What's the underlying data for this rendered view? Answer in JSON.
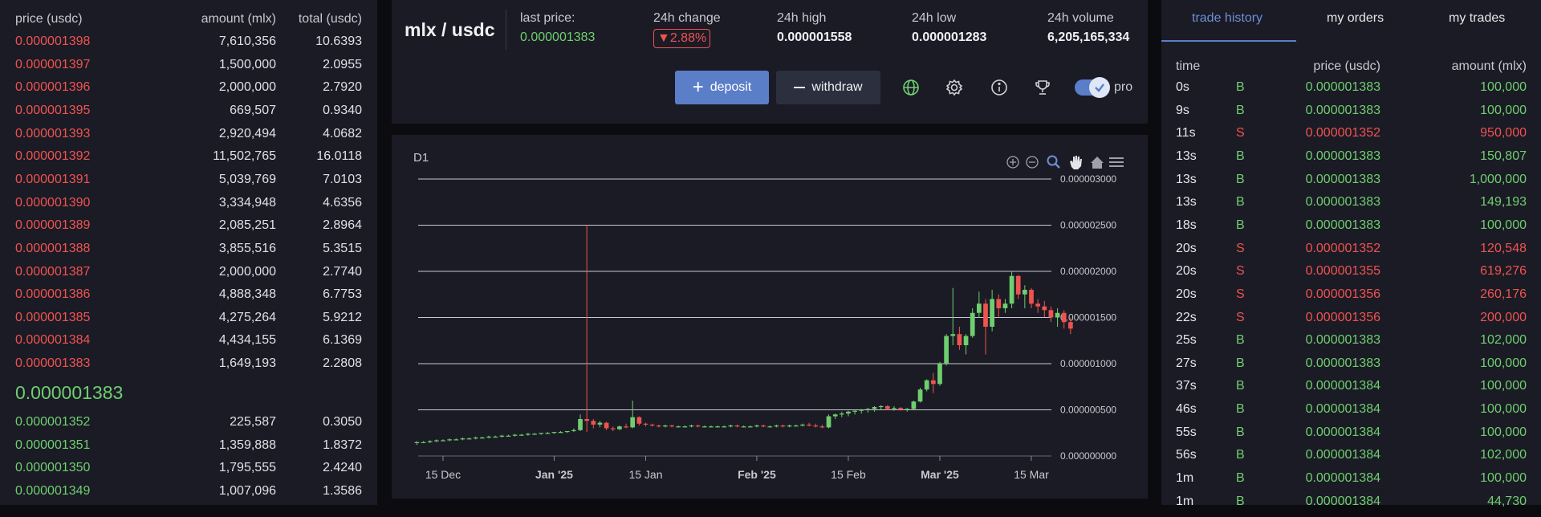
{
  "orderbook": {
    "headers": {
      "price": "price (usdc)",
      "amount": "amount (mlx)",
      "total": "total (usdc)"
    },
    "asks": [
      {
        "price": "0.000001398",
        "amount": "7,610,356",
        "total": "10.6393"
      },
      {
        "price": "0.000001397",
        "amount": "1,500,000",
        "total": "2.0955"
      },
      {
        "price": "0.000001396",
        "amount": "2,000,000",
        "total": "2.7920"
      },
      {
        "price": "0.000001395",
        "amount": "669,507",
        "total": "0.9340"
      },
      {
        "price": "0.000001393",
        "amount": "2,920,494",
        "total": "4.0682"
      },
      {
        "price": "0.000001392",
        "amount": "11,502,765",
        "total": "16.0118"
      },
      {
        "price": "0.000001391",
        "amount": "5,039,769",
        "total": "7.0103"
      },
      {
        "price": "0.000001390",
        "amount": "3,334,948",
        "total": "4.6356"
      },
      {
        "price": "0.000001389",
        "amount": "2,085,251",
        "total": "2.8964"
      },
      {
        "price": "0.000001388",
        "amount": "3,855,516",
        "total": "5.3515"
      },
      {
        "price": "0.000001387",
        "amount": "2,000,000",
        "total": "2.7740"
      },
      {
        "price": "0.000001386",
        "amount": "4,888,348",
        "total": "6.7753"
      },
      {
        "price": "0.000001385",
        "amount": "4,275,264",
        "total": "5.9212"
      },
      {
        "price": "0.000001384",
        "amount": "4,434,155",
        "total": "6.1369"
      },
      {
        "price": "0.000001383",
        "amount": "1,649,193",
        "total": "2.2808"
      }
    ],
    "last_price": "0.000001383",
    "bids": [
      {
        "price": "0.000001352",
        "amount": "225,587",
        "total": "0.3050"
      },
      {
        "price": "0.000001351",
        "amount": "1,359,888",
        "total": "1.8372"
      },
      {
        "price": "0.000001350",
        "amount": "1,795,555",
        "total": "2.4240"
      },
      {
        "price": "0.000001349",
        "amount": "1,007,096",
        "total": "1.3586"
      }
    ]
  },
  "header": {
    "pair": "mlx / usdc",
    "last_price_label": "last price:",
    "last_price": "0.000001383",
    "change_label": "24h change",
    "change": "▼2.88%",
    "high_label": "24h high",
    "high": "0.000001558",
    "low_label": "24h low",
    "low": "0.000001283",
    "volume_label": "24h volume",
    "volume": "6,205,165,334",
    "deposit_label": "deposit",
    "withdraw_label": "withdraw",
    "pro_label": "pro"
  },
  "icons": [
    "globe-icon",
    "settings-icon",
    "info-icon",
    "trophy-icon",
    "zoom-in-icon",
    "zoom-out-icon",
    "zoom-select-icon",
    "pan-icon",
    "home-icon",
    "menu-icon"
  ],
  "chart_data": {
    "type": "candlestick",
    "interval": "D1",
    "x_tick_labels": [
      "15 Dec",
      "Jan '25",
      "15 Jan",
      "Feb '25",
      "15 Feb",
      "Mar '25",
      "15 Mar"
    ],
    "y_tick_labels": [
      "0.000000000",
      "0.000000500",
      "0.000001000",
      "0.000001500",
      "0.000002000",
      "0.000002500",
      "0.000003000"
    ],
    "ylim": [
      0,
      3e-06
    ],
    "start_date": "2024-12-11",
    "candles": [
      [
        1.4e-07,
        1.6e-07,
        1.2e-07,
        1.5e-07
      ],
      [
        1.5e-07,
        1.6e-07,
        1.4e-07,
        1.5e-07
      ],
      [
        1.5e-07,
        1.7e-07,
        1.4e-07,
        1.6e-07
      ],
      [
        1.6e-07,
        1.8e-07,
        1.5e-07,
        1.7e-07
      ],
      [
        1.7e-07,
        1.8e-07,
        1.6e-07,
        1.7e-07
      ],
      [
        1.7e-07,
        1.9e-07,
        1.6e-07,
        1.8e-07
      ],
      [
        1.8e-07,
        1.9e-07,
        1.7e-07,
        1.8e-07
      ],
      [
        1.8e-07,
        2e-07,
        1.7e-07,
        1.9e-07
      ],
      [
        1.9e-07,
        2e-07,
        1.8e-07,
        1.9e-07
      ],
      [
        1.9e-07,
        2.1e-07,
        1.8e-07,
        2e-07
      ],
      [
        2e-07,
        2.1e-07,
        1.9e-07,
        2e-07
      ],
      [
        2e-07,
        2.2e-07,
        1.9e-07,
        2.1e-07
      ],
      [
        2.1e-07,
        2.2e-07,
        2e-07,
        2.1e-07
      ],
      [
        2.1e-07,
        2.3e-07,
        2e-07,
        2.2e-07
      ],
      [
        2.2e-07,
        2.3e-07,
        2.1e-07,
        2.2e-07
      ],
      [
        2.2e-07,
        2.4e-07,
        2.1e-07,
        2.3e-07
      ],
      [
        2.3e-07,
        2.4e-07,
        2.2e-07,
        2.3e-07
      ],
      [
        2.3e-07,
        2.5e-07,
        2.2e-07,
        2.4e-07
      ],
      [
        2.4e-07,
        2.5e-07,
        2.3e-07,
        2.4e-07
      ],
      [
        2.4e-07,
        2.5e-07,
        2.3e-07,
        2.5e-07
      ],
      [
        2.5e-07,
        2.6e-07,
        2.4e-07,
        2.5e-07
      ],
      [
        2.5e-07,
        2.6e-07,
        2.4e-07,
        2.6e-07
      ],
      [
        2.6e-07,
        2.7e-07,
        2.5e-07,
        2.6e-07
      ],
      [
        2.6e-07,
        2.7e-07,
        2.5e-07,
        2.7e-07
      ],
      [
        2.7e-07,
        3e-07,
        2.6e-07,
        2.8e-07
      ],
      [
        2.8e-07,
        4.5e-07,
        2.7e-07,
        4e-07
      ],
      [
        4e-07,
        2.5e-06,
        2.6e-07,
        3.8e-07
      ],
      [
        3.8e-07,
        4e-07,
        3e-07,
        3.4e-07
      ],
      [
        3.4e-07,
        3.8e-07,
        3.1e-07,
        3.6e-07
      ],
      [
        3.6e-07,
        3.7e-07,
        2.8e-07,
        3e-07
      ],
      [
        3e-07,
        3.2e-07,
        2.7e-07,
        2.9e-07
      ],
      [
        2.9e-07,
        3.3e-07,
        2.8e-07,
        3.2e-07
      ],
      [
        3.2e-07,
        3.5e-07,
        3e-07,
        3.1e-07
      ],
      [
        3.1e-07,
        6e-07,
        3e-07,
        4.2e-07
      ],
      [
        4.2e-07,
        4.3e-07,
        3.3e-07,
        3.5e-07
      ],
      [
        3.5e-07,
        3.6e-07,
        3.2e-07,
        3.4e-07
      ],
      [
        3.4e-07,
        3.5e-07,
        3.2e-07,
        3.3e-07
      ],
      [
        3.3e-07,
        3.4e-07,
        3.1e-07,
        3.2e-07
      ],
      [
        3.2e-07,
        3.4e-07,
        3.1e-07,
        3.3e-07
      ],
      [
        3.3e-07,
        3.4e-07,
        3.1e-07,
        3.2e-07
      ],
      [
        3.2e-07,
        3.3e-07,
        3.1e-07,
        3.2e-07
      ],
      [
        3.2e-07,
        3.3e-07,
        3.1e-07,
        3.2e-07
      ],
      [
        3.2e-07,
        3.4e-07,
        3.1e-07,
        3.3e-07
      ],
      [
        3.3e-07,
        3.4e-07,
        3.1e-07,
        3.2e-07
      ],
      [
        3.2e-07,
        3.3e-07,
        3.1e-07,
        3.2e-07
      ],
      [
        3.2e-07,
        3.3e-07,
        3.1e-07,
        3.2e-07
      ],
      [
        3.2e-07,
        3.3e-07,
        3.1e-07,
        3.2e-07
      ],
      [
        3.2e-07,
        3.3e-07,
        3.1e-07,
        3.2e-07
      ],
      [
        3.2e-07,
        3.4e-07,
        3.1e-07,
        3.3e-07
      ],
      [
        3.3e-07,
        3.4e-07,
        3.1e-07,
        3.2e-07
      ],
      [
        3.2e-07,
        3.3e-07,
        3.1e-07,
        3.2e-07
      ],
      [
        3.2e-07,
        3.3e-07,
        3.1e-07,
        3.2e-07
      ],
      [
        3.2e-07,
        3.4e-07,
        3.1e-07,
        3.3e-07
      ],
      [
        3.3e-07,
        3.4e-07,
        3.1e-07,
        3.2e-07
      ],
      [
        3.2e-07,
        3.3e-07,
        3.1e-07,
        3.2e-07
      ],
      [
        3.2e-07,
        3.4e-07,
        3.1e-07,
        3.3e-07
      ],
      [
        3.3e-07,
        3.4e-07,
        3.1e-07,
        3.2e-07
      ],
      [
        3.2e-07,
        3.4e-07,
        3.1e-07,
        3.3e-07
      ],
      [
        3.3e-07,
        3.4e-07,
        3.2e-07,
        3.3e-07
      ],
      [
        3.3e-07,
        3.5e-07,
        3.2e-07,
        3.4e-07
      ],
      [
        3.4e-07,
        3.6e-07,
        3.2e-07,
        3.3e-07
      ],
      [
        3.3e-07,
        3.5e-07,
        3.1e-07,
        3.2e-07
      ],
      [
        3.2e-07,
        3.4e-07,
        3e-07,
        3.1e-07
      ],
      [
        3.1e-07,
        4.5e-07,
        3e-07,
        4.3e-07
      ],
      [
        4.3e-07,
        4.6e-07,
        4e-07,
        4.5e-07
      ],
      [
        4.5e-07,
        4.8e-07,
        4.2e-07,
        4.6e-07
      ],
      [
        4.6e-07,
        4.9e-07,
        4.3e-07,
        4.8e-07
      ],
      [
        4.8e-07,
        5e-07,
        4.5e-07,
        4.9e-07
      ],
      [
        4.9e-07,
        5.1e-07,
        4.6e-07,
        5e-07
      ],
      [
        5e-07,
        5.2e-07,
        4.7e-07,
        5.1e-07
      ],
      [
        5.1e-07,
        5.4e-07,
        4.8e-07,
        5.3e-07
      ],
      [
        5.3e-07,
        5.5e-07,
        5e-07,
        5.4e-07
      ],
      [
        5.4e-07,
        5.5e-07,
        5e-07,
        5.1e-07
      ],
      [
        5.1e-07,
        5.4e-07,
        4.9e-07,
        5.2e-07
      ],
      [
        5.2e-07,
        5.3e-07,
        4.9e-07,
        5e-07
      ],
      [
        5e-07,
        5.2e-07,
        4.8e-07,
        5.1e-07
      ],
      [
        5.1e-07,
        6e-07,
        5e-07,
        5.9e-07
      ],
      [
        5.9e-07,
        7.4e-07,
        5.8e-07,
        7.2e-07
      ],
      [
        7.2e-07,
        8.3e-07,
        7e-07,
        8.2e-07
      ],
      [
        8.2e-07,
        9e-07,
        6.8e-07,
        7.8e-07
      ],
      [
        7.8e-07,
        1.02e-06,
        7.6e-07,
        1e-06
      ],
      [
        1e-06,
        1.32e-06,
        9.8e-07,
        1.3e-06
      ],
      [
        1.3e-06,
        1.82e-06,
        1.2e-06,
        1.32e-06
      ],
      [
        1.32e-06,
        1.4e-06,
        1.15e-06,
        1.2e-06
      ],
      [
        1.2e-06,
        1.32e-06,
        1.1e-06,
        1.3e-06
      ],
      [
        1.3e-06,
        1.6e-06,
        1.28e-06,
        1.55e-06
      ],
      [
        1.55e-06,
        1.78e-06,
        1.5e-06,
        1.65e-06
      ],
      [
        1.65e-06,
        1.7e-06,
        1.1e-06,
        1.4e-06
      ],
      [
        1.4e-06,
        1.8e-06,
        1.35e-06,
        1.7e-06
      ],
      [
        1.7e-06,
        1.75e-06,
        1.5e-06,
        1.6e-06
      ],
      [
        1.6e-06,
        1.7e-06,
        1.55e-06,
        1.65e-06
      ],
      [
        1.65e-06,
        2e-06,
        1.6e-06,
        1.95e-06
      ],
      [
        1.95e-06,
        1.96e-06,
        1.7e-06,
        1.75e-06
      ],
      [
        1.75e-06,
        1.85e-06,
        1.6e-06,
        1.8e-06
      ],
      [
        1.8e-06,
        1.82e-06,
        1.6e-06,
        1.65e-06
      ],
      [
        1.65e-06,
        1.7e-06,
        1.55e-06,
        1.62e-06
      ],
      [
        1.62e-06,
        1.68e-06,
        1.5e-06,
        1.58e-06
      ],
      [
        1.58e-06,
        1.62e-06,
        1.45e-06,
        1.5e-06
      ],
      [
        1.5e-06,
        1.6e-06,
        1.4e-06,
        1.55e-06
      ],
      [
        1.55e-06,
        1.58e-06,
        1.38e-06,
        1.45e-06
      ],
      [
        1.45e-06,
        1.5e-06,
        1.32e-06,
        1.38e-06
      ]
    ]
  },
  "trades": {
    "tabs": [
      "trade history",
      "my orders",
      "my trades"
    ],
    "headers": {
      "time": "time",
      "price": "price (usdc)",
      "amount": "amount (mlx)"
    },
    "rows": [
      {
        "time": "0s",
        "side": "B",
        "price": "0.000001383",
        "amount": "100,000"
      },
      {
        "time": "9s",
        "side": "B",
        "price": "0.000001383",
        "amount": "100,000"
      },
      {
        "time": "11s",
        "side": "S",
        "price": "0.000001352",
        "amount": "950,000"
      },
      {
        "time": "13s",
        "side": "B",
        "price": "0.000001383",
        "amount": "150,807"
      },
      {
        "time": "13s",
        "side": "B",
        "price": "0.000001383",
        "amount": "1,000,000"
      },
      {
        "time": "13s",
        "side": "B",
        "price": "0.000001383",
        "amount": "149,193"
      },
      {
        "time": "18s",
        "side": "B",
        "price": "0.000001383",
        "amount": "100,000"
      },
      {
        "time": "20s",
        "side": "S",
        "price": "0.000001352",
        "amount": "120,548"
      },
      {
        "time": "20s",
        "side": "S",
        "price": "0.000001355",
        "amount": "619,276"
      },
      {
        "time": "20s",
        "side": "S",
        "price": "0.000001356",
        "amount": "260,176"
      },
      {
        "time": "22s",
        "side": "S",
        "price": "0.000001356",
        "amount": "200,000"
      },
      {
        "time": "25s",
        "side": "B",
        "price": "0.000001383",
        "amount": "102,000"
      },
      {
        "time": "27s",
        "side": "B",
        "price": "0.000001383",
        "amount": "100,000"
      },
      {
        "time": "37s",
        "side": "B",
        "price": "0.000001384",
        "amount": "100,000"
      },
      {
        "time": "46s",
        "side": "B",
        "price": "0.000001384",
        "amount": "100,000"
      },
      {
        "time": "55s",
        "side": "B",
        "price": "0.000001384",
        "amount": "100,000"
      },
      {
        "time": "56s",
        "side": "B",
        "price": "0.000001384",
        "amount": "102,000"
      },
      {
        "time": "1m",
        "side": "B",
        "price": "0.000001384",
        "amount": "100,000"
      },
      {
        "time": "1m",
        "side": "B",
        "price": "0.000001384",
        "amount": "44,730"
      }
    ]
  },
  "colors": {
    "buy": "#6fcf6f",
    "sell": "#ef5350",
    "accent": "#5b7ec8",
    "panel": "#1b1b25",
    "background": "#0b0b10"
  }
}
